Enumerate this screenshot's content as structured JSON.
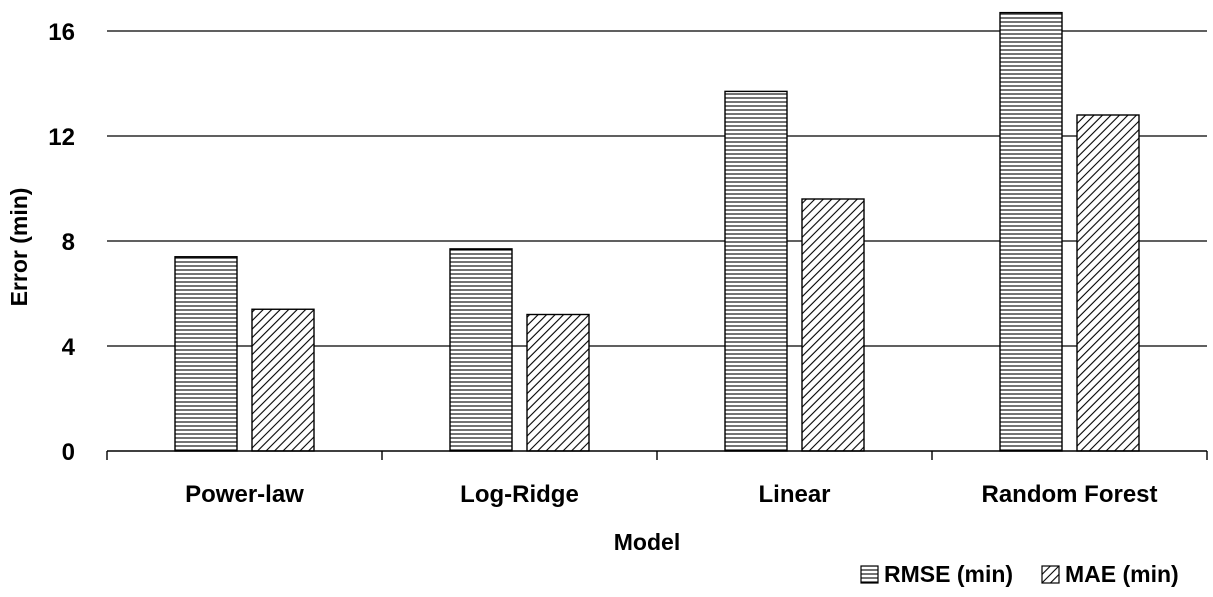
{
  "chart_data": {
    "type": "bar",
    "xlabel": "Model",
    "ylabel": "Error (min)",
    "categories": [
      "Power-law",
      "Log-Ridge",
      "Linear",
      "Random Forest"
    ],
    "series": [
      {
        "name": "RMSE (min)",
        "pattern": "horizontal-lines",
        "values": [
          7.4,
          7.7,
          13.7,
          16.7
        ]
      },
      {
        "name": "MAE (min)",
        "pattern": "diagonal-lines",
        "values": [
          5.4,
          5.2,
          9.6,
          12.8
        ]
      }
    ],
    "ylim": [
      0,
      16
    ],
    "yticks": [
      0,
      4,
      8,
      12,
      16
    ],
    "ytick_labels": [
      "0",
      "4",
      "8",
      "12",
      "16"
    ],
    "grid": true,
    "legend_position": "bottom-right",
    "colors": {
      "bar_fill": "#ffffff",
      "bar_stroke": "#000000",
      "grid": "#000000"
    }
  }
}
